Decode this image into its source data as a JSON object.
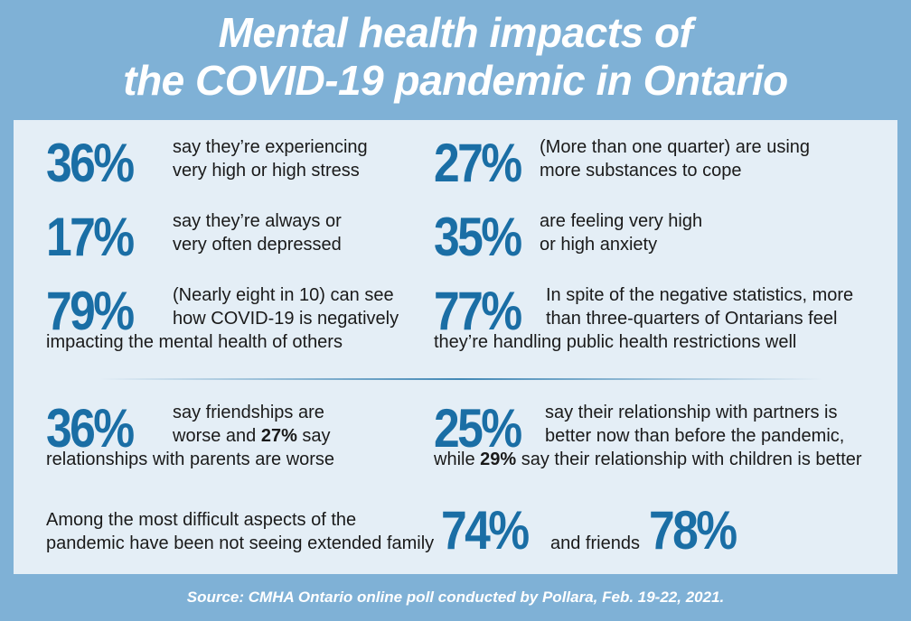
{
  "title": {
    "line1": "Mental health impacts of",
    "line2": "the COVID-19 pandemic in Ontario"
  },
  "stats": {
    "stress": {
      "pct": "36%",
      "line1": "say they’re experiencing",
      "line2": "very high or high stress"
    },
    "substances": {
      "pct": "27%",
      "line1": "(More than one quarter) are using",
      "line2": "more substances to cope"
    },
    "depressed": {
      "pct": "17%",
      "line1": "say they’re always or",
      "line2": "very often depressed"
    },
    "anxiety": {
      "pct": "35%",
      "line1": "are feeling very high",
      "line2": "or high anxiety"
    },
    "others": {
      "pct": "79%",
      "line1": "(Nearly eight in 10) can see",
      "line2": "how COVID-19 is negatively",
      "line3": "impacting the mental health of others"
    },
    "restrictions": {
      "pct": "77%",
      "line1": "In spite of the negative statistics, more",
      "line2": "than three-quarters of Ontarians feel",
      "line3": "they’re handling public health restrictions well"
    },
    "friendships": {
      "pct": "36%",
      "line1": "say friendships are",
      "line2a": "worse and ",
      "line2b": "27%",
      "line2c": " say",
      "line3": "relationships with parents are worse"
    },
    "partners": {
      "pct": "25%",
      "line1": "say their relationship with partners is",
      "line2": "better now than before the pandemic,",
      "line3a": "while ",
      "line3b": "29%",
      "line3c": " say their relationship with children is better"
    },
    "difficult": {
      "line1": "Among the most difficult aspects of the",
      "line2": "pandemic have been not seeing extended family",
      "pct_family": "74%",
      "and_friends": "and friends",
      "pct_friends": "78%"
    }
  },
  "source": "Source: CMHA Ontario online poll conducted by Pollara, Feb. 19-22, 2021.",
  "colors": {
    "background": "#7fb1d6",
    "panel": "#e4eef6",
    "accent": "#1a6ea5",
    "text": "#1a1a1a"
  }
}
